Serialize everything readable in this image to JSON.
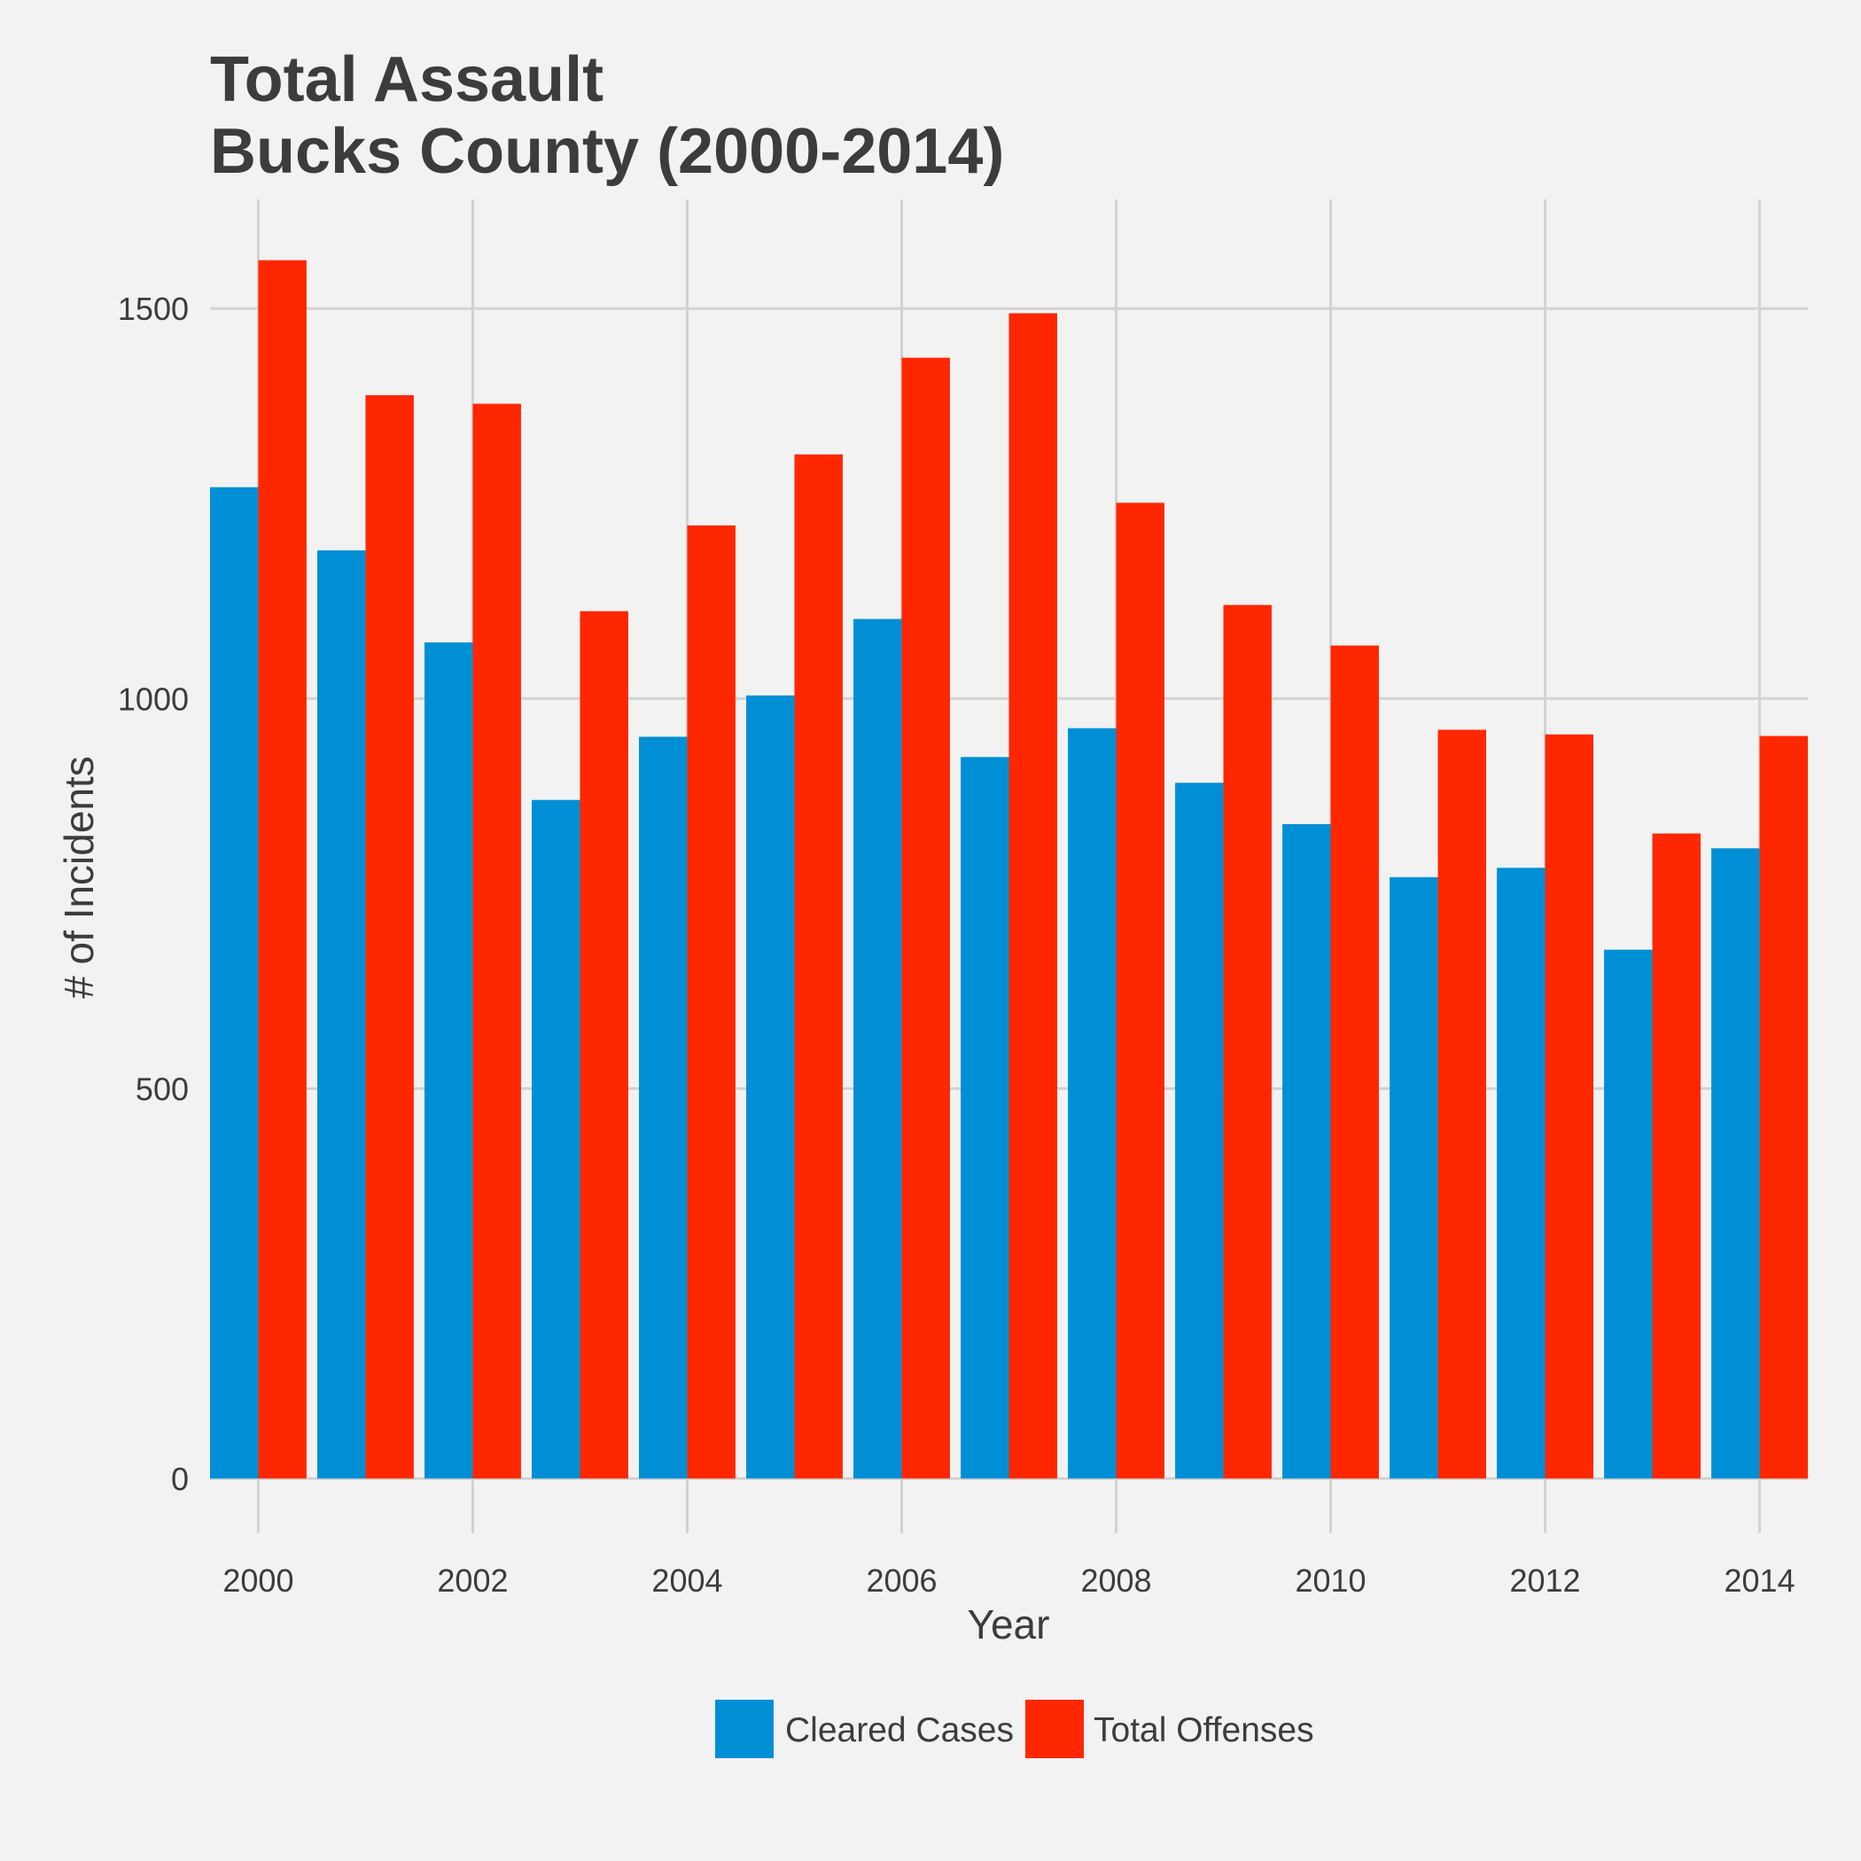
{
  "chart_data": {
    "type": "bar",
    "title_lines": [
      "Total Assault",
      "Bucks County (2000-2014)"
    ],
    "xlabel": "Year",
    "ylabel": "# of Incidents",
    "x": [
      2000,
      2001,
      2002,
      2003,
      2004,
      2005,
      2006,
      2007,
      2008,
      2009,
      2010,
      2011,
      2012,
      2013,
      2014
    ],
    "x_ticks": [
      "2000",
      "2002",
      "2004",
      "2006",
      "2008",
      "2010",
      "2012",
      "2014"
    ],
    "y_ticks": [
      "0",
      "500",
      "1000",
      "1500"
    ],
    "ylim": [
      -70,
      1640
    ],
    "xlim": [
      1999.55,
      2014.45
    ],
    "series": [
      {
        "name": "Cleared Cases",
        "color": "#008fd5",
        "values": [
          1271,
          1190,
          1072,
          870,
          951,
          1004,
          1102,
          925,
          962,
          892,
          839,
          771,
          783,
          678,
          808
        ]
      },
      {
        "name": "Total Offenses",
        "color": "#ff2700",
        "values": [
          1562,
          1389,
          1378,
          1112,
          1222,
          1313,
          1437,
          1494,
          1251,
          1120,
          1068,
          960,
          954,
          827,
          952
        ]
      }
    ],
    "grid": true,
    "legend_position": "bottom"
  }
}
